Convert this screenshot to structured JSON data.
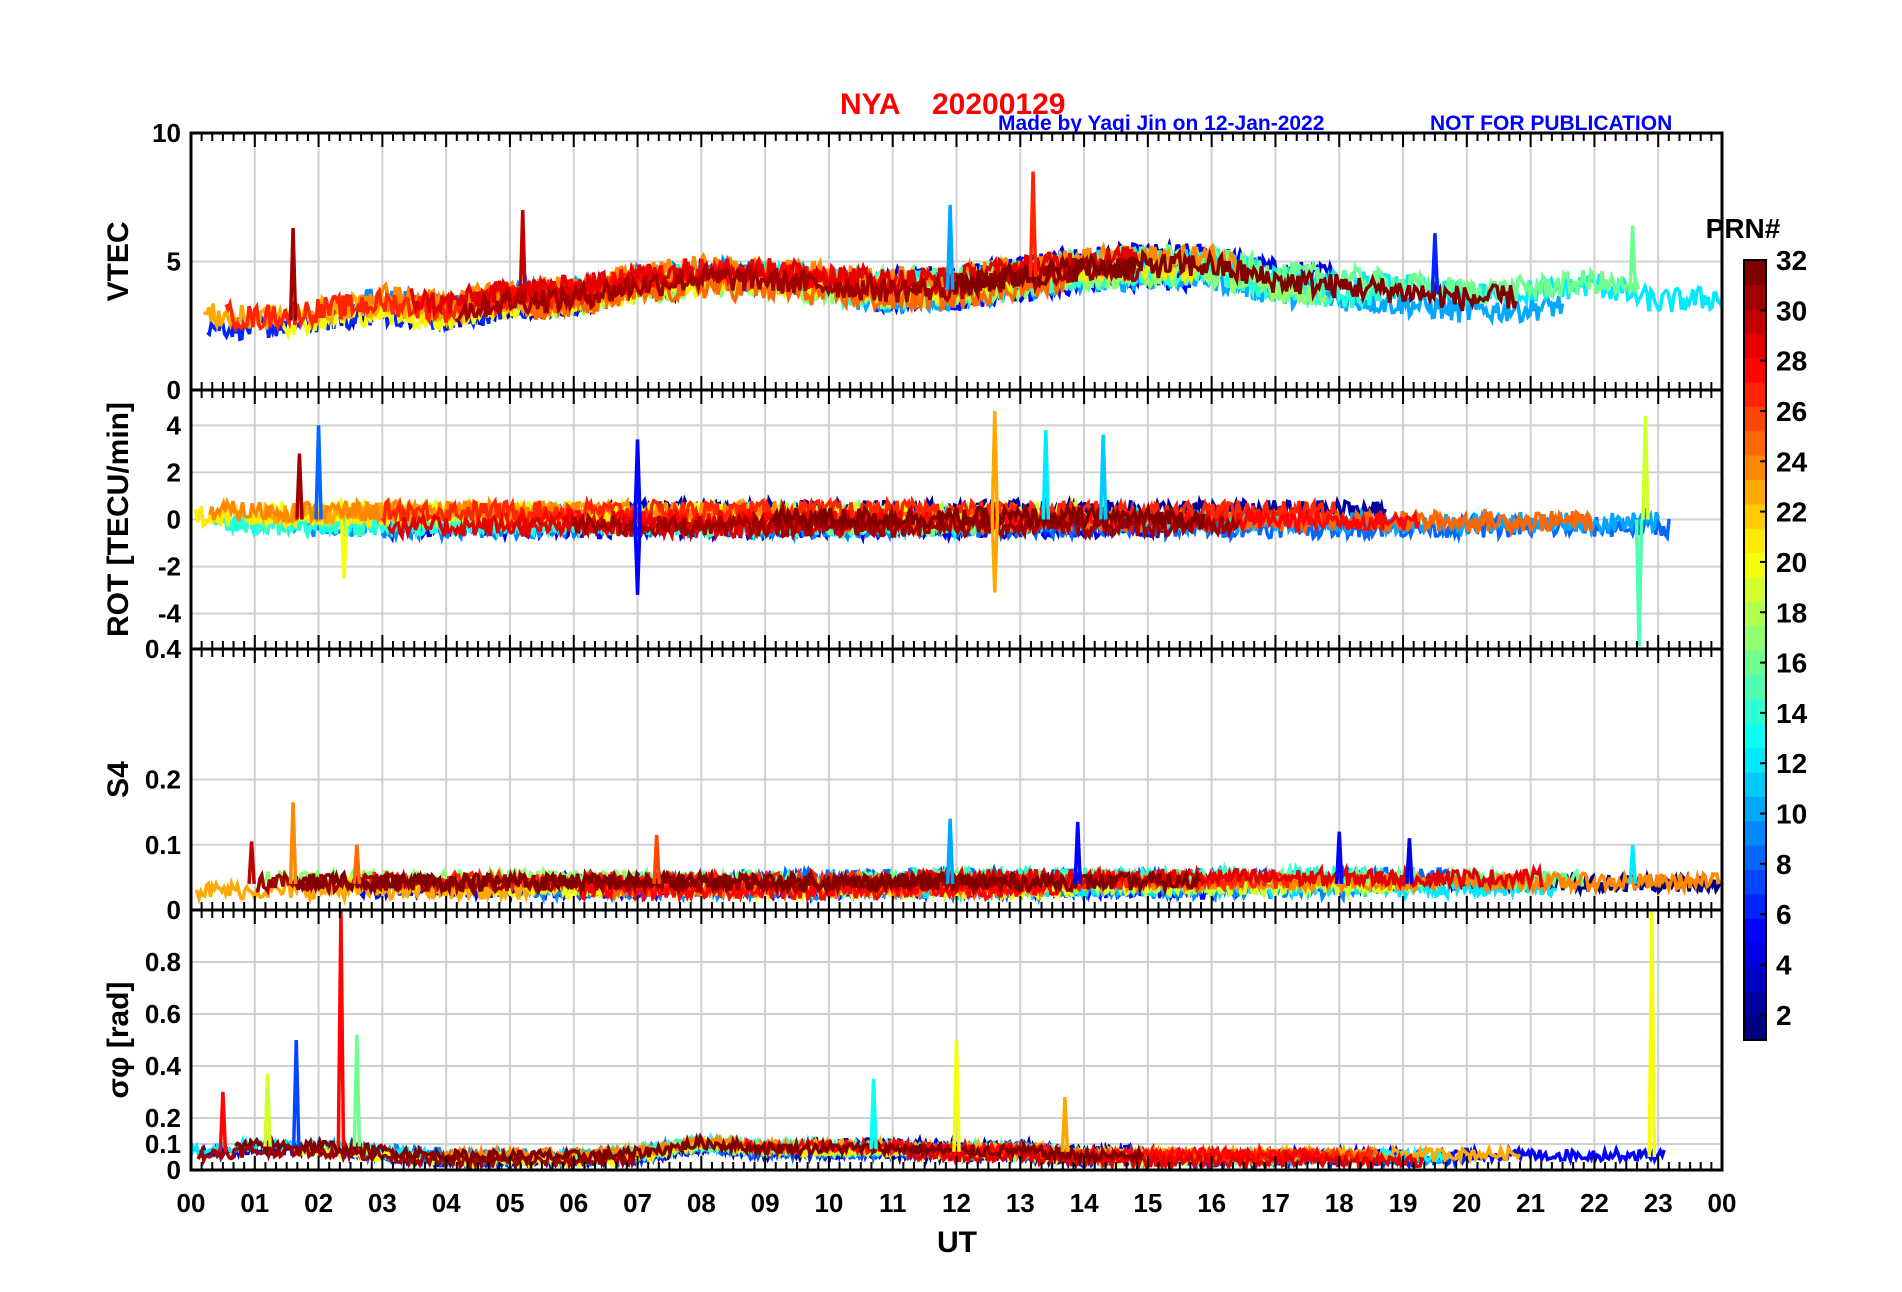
{
  "chart_data": {
    "type": "line",
    "title": {
      "station": "NYA",
      "date": "20200129",
      "credit": "Made by Yaqi Jin on 12-Jan-2022",
      "notice": "NOT FOR PUBLICATION"
    },
    "xlabel": "UT",
    "x_range": [
      0,
      24
    ],
    "x_tick_labels": [
      "00",
      "01",
      "02",
      "03",
      "04",
      "05",
      "06",
      "07",
      "08",
      "09",
      "10",
      "11",
      "12",
      "13",
      "14",
      "15",
      "16",
      "17",
      "18",
      "19",
      "20",
      "21",
      "22",
      "23",
      "00"
    ],
    "grid": true,
    "colorbar": {
      "label": "PRN#",
      "range": [
        1,
        32
      ],
      "colormap": "jet",
      "ticks": [
        "2",
        "4",
        "6",
        "8",
        "10",
        "12",
        "14",
        "16",
        "18",
        "20",
        "22",
        "24",
        "26",
        "28",
        "30",
        "32"
      ]
    },
    "panels": [
      {
        "id": "vtec",
        "ylabel": "VTEC",
        "ylim": [
          0,
          10
        ],
        "y_ticks": [
          0,
          5,
          10
        ],
        "y_tick_labels": [
          "0",
          "5",
          "10"
        ],
        "baseline": [
          2.9,
          2.7,
          3.0,
          3.3,
          3.0,
          3.5,
          3.6,
          4.1,
          4.4,
          4.3,
          4.1,
          3.9,
          4.0,
          4.4,
          4.7,
          4.8,
          4.8,
          4.2,
          4.0,
          3.8,
          3.5,
          3.6,
          3.9,
          3.2,
          3.4,
          3.1
        ],
        "noise": 0.45,
        "spikes": [
          [
            13.2,
            8.5,
            27
          ],
          [
            11.9,
            7.2,
            10
          ],
          [
            5.2,
            7.0,
            30
          ],
          [
            1.6,
            6.3,
            31
          ],
          [
            22.6,
            6.4,
            16
          ],
          [
            19.5,
            6.1,
            6
          ]
        ]
      },
      {
        "id": "rot",
        "ylabel": "ROT [TECU/min]",
        "ylim": [
          -5.5,
          5.5
        ],
        "y_ticks": [
          -4,
          -2,
          0,
          2,
          4
        ],
        "y_tick_labels": [
          "-4",
          "-2",
          "0",
          "2",
          "4"
        ],
        "baseline": [
          0,
          0,
          0,
          0,
          0,
          0,
          0,
          0,
          0,
          0,
          0,
          0,
          0,
          0,
          0,
          0,
          0,
          0,
          0,
          0,
          0,
          0,
          0,
          0,
          0,
          0
        ],
        "noise": 0.4,
        "spikes": [
          [
            12.6,
            4.6,
            23
          ],
          [
            12.6,
            -3.1,
            23
          ],
          [
            2.0,
            4.0,
            8
          ],
          [
            2.4,
            -2.5,
            20
          ],
          [
            7.0,
            3.4,
            5
          ],
          [
            7.0,
            -3.2,
            5
          ],
          [
            22.8,
            4.4,
            19
          ],
          [
            22.7,
            -5.4,
            15
          ],
          [
            1.7,
            2.8,
            31
          ],
          [
            13.4,
            3.8,
            12
          ],
          [
            14.3,
            3.6,
            11
          ]
        ]
      },
      {
        "id": "s4",
        "ylabel": "S4",
        "ylim": [
          0,
          0.4
        ],
        "y_ticks": [
          0,
          0.1,
          0.2,
          0.4
        ],
        "y_tick_labels": [
          "0",
          "0.1",
          "0.2",
          "0.4"
        ],
        "baseline": [
          0.04,
          0.04,
          0.04,
          0.04,
          0.04,
          0.04,
          0.04,
          0.04,
          0.04,
          0.04,
          0.04,
          0.04,
          0.04,
          0.04,
          0.04,
          0.04,
          0.04,
          0.04,
          0.04,
          0.04,
          0.04,
          0.04,
          0.04,
          0.04,
          0.04,
          0.04
        ],
        "noise": 0.012,
        "spikes": [
          [
            1.6,
            0.165,
            24
          ],
          [
            11.9,
            0.14,
            10
          ],
          [
            13.9,
            0.135,
            5
          ],
          [
            18.0,
            0.12,
            5
          ],
          [
            19.1,
            0.11,
            4
          ],
          [
            7.3,
            0.115,
            26
          ],
          [
            0.95,
            0.105,
            30
          ],
          [
            2.6,
            0.1,
            25
          ],
          [
            22.6,
            0.1,
            12
          ]
        ]
      },
      {
        "id": "sigma",
        "ylabel": "σφ [rad]",
        "ylim": [
          0,
          1.0
        ],
        "y_ticks": [
          0,
          0.1,
          0.2,
          0.4,
          0.6,
          0.8
        ],
        "y_tick_labels": [
          "0",
          "0.1",
          "0.2",
          "0.4",
          "0.6",
          "0.8"
        ],
        "baseline": [
          0.07,
          0.09,
          0.09,
          0.07,
          0.05,
          0.05,
          0.05,
          0.06,
          0.1,
          0.08,
          0.08,
          0.08,
          0.07,
          0.07,
          0.05,
          0.05,
          0.05,
          0.05,
          0.05,
          0.05,
          0.05,
          0.05,
          0.05,
          0.05,
          0.05,
          0.05
        ],
        "noise": 0.02,
        "spikes": [
          [
            2.35,
            1.0,
            28
          ],
          [
            22.9,
            1.0,
            20
          ],
          [
            1.65,
            0.5,
            7
          ],
          [
            12.0,
            0.5,
            20
          ],
          [
            2.6,
            0.52,
            16
          ],
          [
            0.5,
            0.3,
            28
          ],
          [
            1.2,
            0.37,
            19
          ],
          [
            13.7,
            0.28,
            23
          ],
          [
            10.7,
            0.35,
            13
          ]
        ]
      }
    ]
  }
}
